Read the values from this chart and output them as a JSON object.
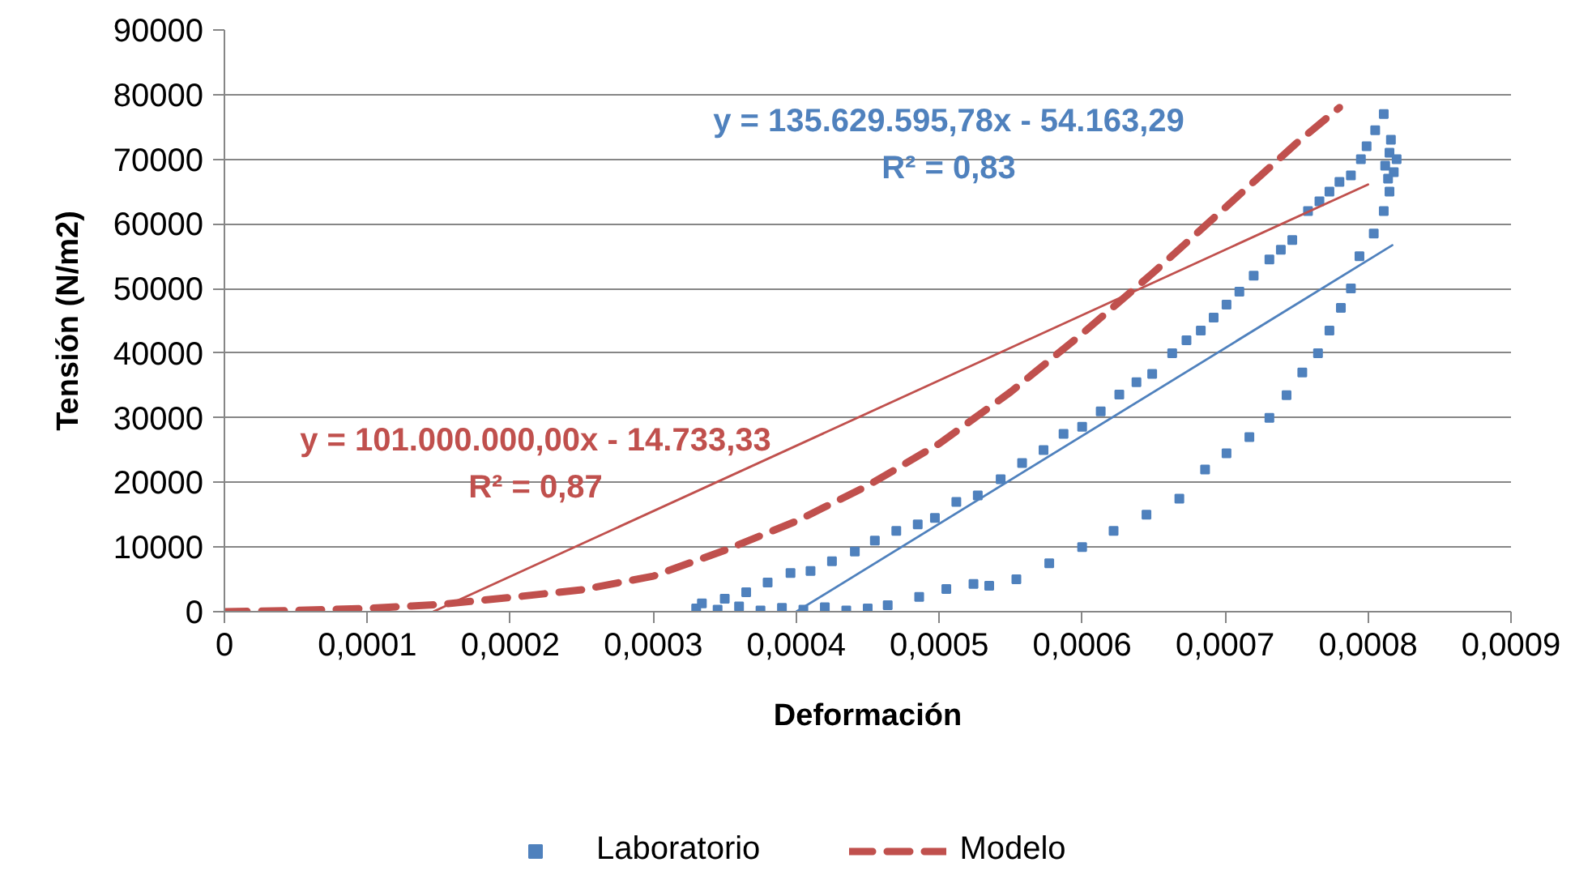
{
  "chart_data": {
    "type": "scatter",
    "xlabel": "Deformación",
    "ylabel": "Tensión (N/m2)",
    "xlim": [
      0,
      0.0009
    ],
    "xticks": [
      0,
      {
        "value": 0.0001,
        "label": "0,0001"
      },
      {
        "value": 0.0002,
        "label": "0,0002"
      },
      {
        "value": 0.0003,
        "label": "0,0003"
      },
      {
        "value": 0.0004,
        "label": "0,0004"
      },
      {
        "value": 0.0005,
        "label": "0,0005"
      },
      {
        "value": 0.0006,
        "label": "0,0006"
      },
      {
        "value": 0.0007,
        "label": "0,0007"
      },
      {
        "value": 0.0008,
        "label": "0,0008"
      },
      {
        "value": 0.0009,
        "label": "0,0009"
      }
    ],
    "ylim": [
      0,
      90000
    ],
    "yticks": [
      0,
      10000,
      20000,
      30000,
      40000,
      50000,
      60000,
      70000,
      80000,
      90000
    ],
    "grid": "y",
    "legend": "bottom",
    "series": [
      {
        "name": "Laboratorio",
        "color": "#4f81bd",
        "marker": "square",
        "x": [
          0.00033,
          0.000345,
          0.00036,
          0.000375,
          0.00039,
          0.000405,
          0.00042,
          0.000435,
          0.00045,
          0.000464,
          0.000334,
          0.00035,
          0.000365,
          0.00038,
          0.000396,
          0.00041,
          0.000425,
          0.000441,
          0.000455,
          0.00047,
          0.000485,
          0.000497,
          0.000512,
          0.000527,
          0.000543,
          0.000558,
          0.000573,
          0.000587,
          0.0006,
          0.000613,
          0.000626,
          0.000638,
          0.000649,
          0.000663,
          0.000673,
          0.000683,
          0.000692,
          0.000701,
          0.00071,
          0.00072,
          0.000731,
          0.000739,
          0.000747,
          0.000758,
          0.000766,
          0.000773,
          0.00078,
          0.000788,
          0.000795,
          0.000799,
          0.000805,
          0.000811,
          0.000812,
          0.000815,
          0.000818,
          0.000816,
          0.000814,
          0.00082,
          0.000815,
          0.000811,
          0.000804,
          0.000794,
          0.000788,
          0.000781,
          0.000773,
          0.000765,
          0.000754,
          0.000743,
          0.000731,
          0.000717,
          0.000701,
          0.000686,
          0.000668,
          0.000645,
          0.000622,
          0.0006,
          0.000577,
          0.000554,
          0.000535,
          0.000524,
          0.000505,
          0.000486
        ],
        "values": [
          500,
          300,
          800,
          200,
          600,
          300,
          700,
          200,
          500,
          1000,
          1300,
          2000,
          3000,
          4500,
          6000,
          6300,
          7800,
          9300,
          11000,
          12500,
          13500,
          14500,
          17000,
          18000,
          20500,
          23000,
          25000,
          27500,
          28600,
          31000,
          33600,
          35500,
          36800,
          40000,
          42000,
          43500,
          45500,
          47500,
          49500,
          52000,
          54500,
          56000,
          57500,
          62000,
          63500,
          65000,
          66500,
          67500,
          70000,
          72000,
          74500,
          77000,
          69000,
          71000,
          68000,
          73000,
          67000,
          70000,
          65000,
          62000,
          58500,
          55000,
          50000,
          47000,
          43500,
          40000,
          37000,
          33500,
          30000,
          27000,
          24500,
          22000,
          17500,
          15000,
          12500,
          10000,
          7500,
          5000,
          4000,
          4300,
          3500,
          2300
        ]
      },
      {
        "name": "Modelo",
        "type": "line",
        "color": "#c0504d",
        "line_style": "dashed",
        "x": [
          0,
          5e-05,
          0.0001,
          0.00015,
          0.0002,
          0.00025,
          0.0003,
          0.00035,
          0.0004,
          0.00045,
          0.0005,
          0.00055,
          0.0006,
          0.00065,
          0.0007,
          0.00075,
          0.00078
        ],
        "values": [
          0,
          200,
          500,
          1100,
          2200,
          3400,
          5500,
          9500,
          14000,
          19500,
          26000,
          34000,
          43000,
          52500,
          62500,
          72500,
          78000
        ]
      },
      {
        "type": "line",
        "color": "#4f81bd",
        "x": [
          0.0004,
          0.000817
        ],
        "values": [
          0,
          56700
        ]
      },
      {
        "type": "line",
        "color": "#c0504d",
        "x": [
          0.000146,
          0.0008
        ],
        "values": [
          0,
          66100
        ]
      }
    ],
    "annotations": [
      "y = 135.629.595,78x - 54.163,29\nR² = 0,83",
      "y = 101.000.000,00x - 14.733,33\nR² = 0,87"
    ]
  }
}
